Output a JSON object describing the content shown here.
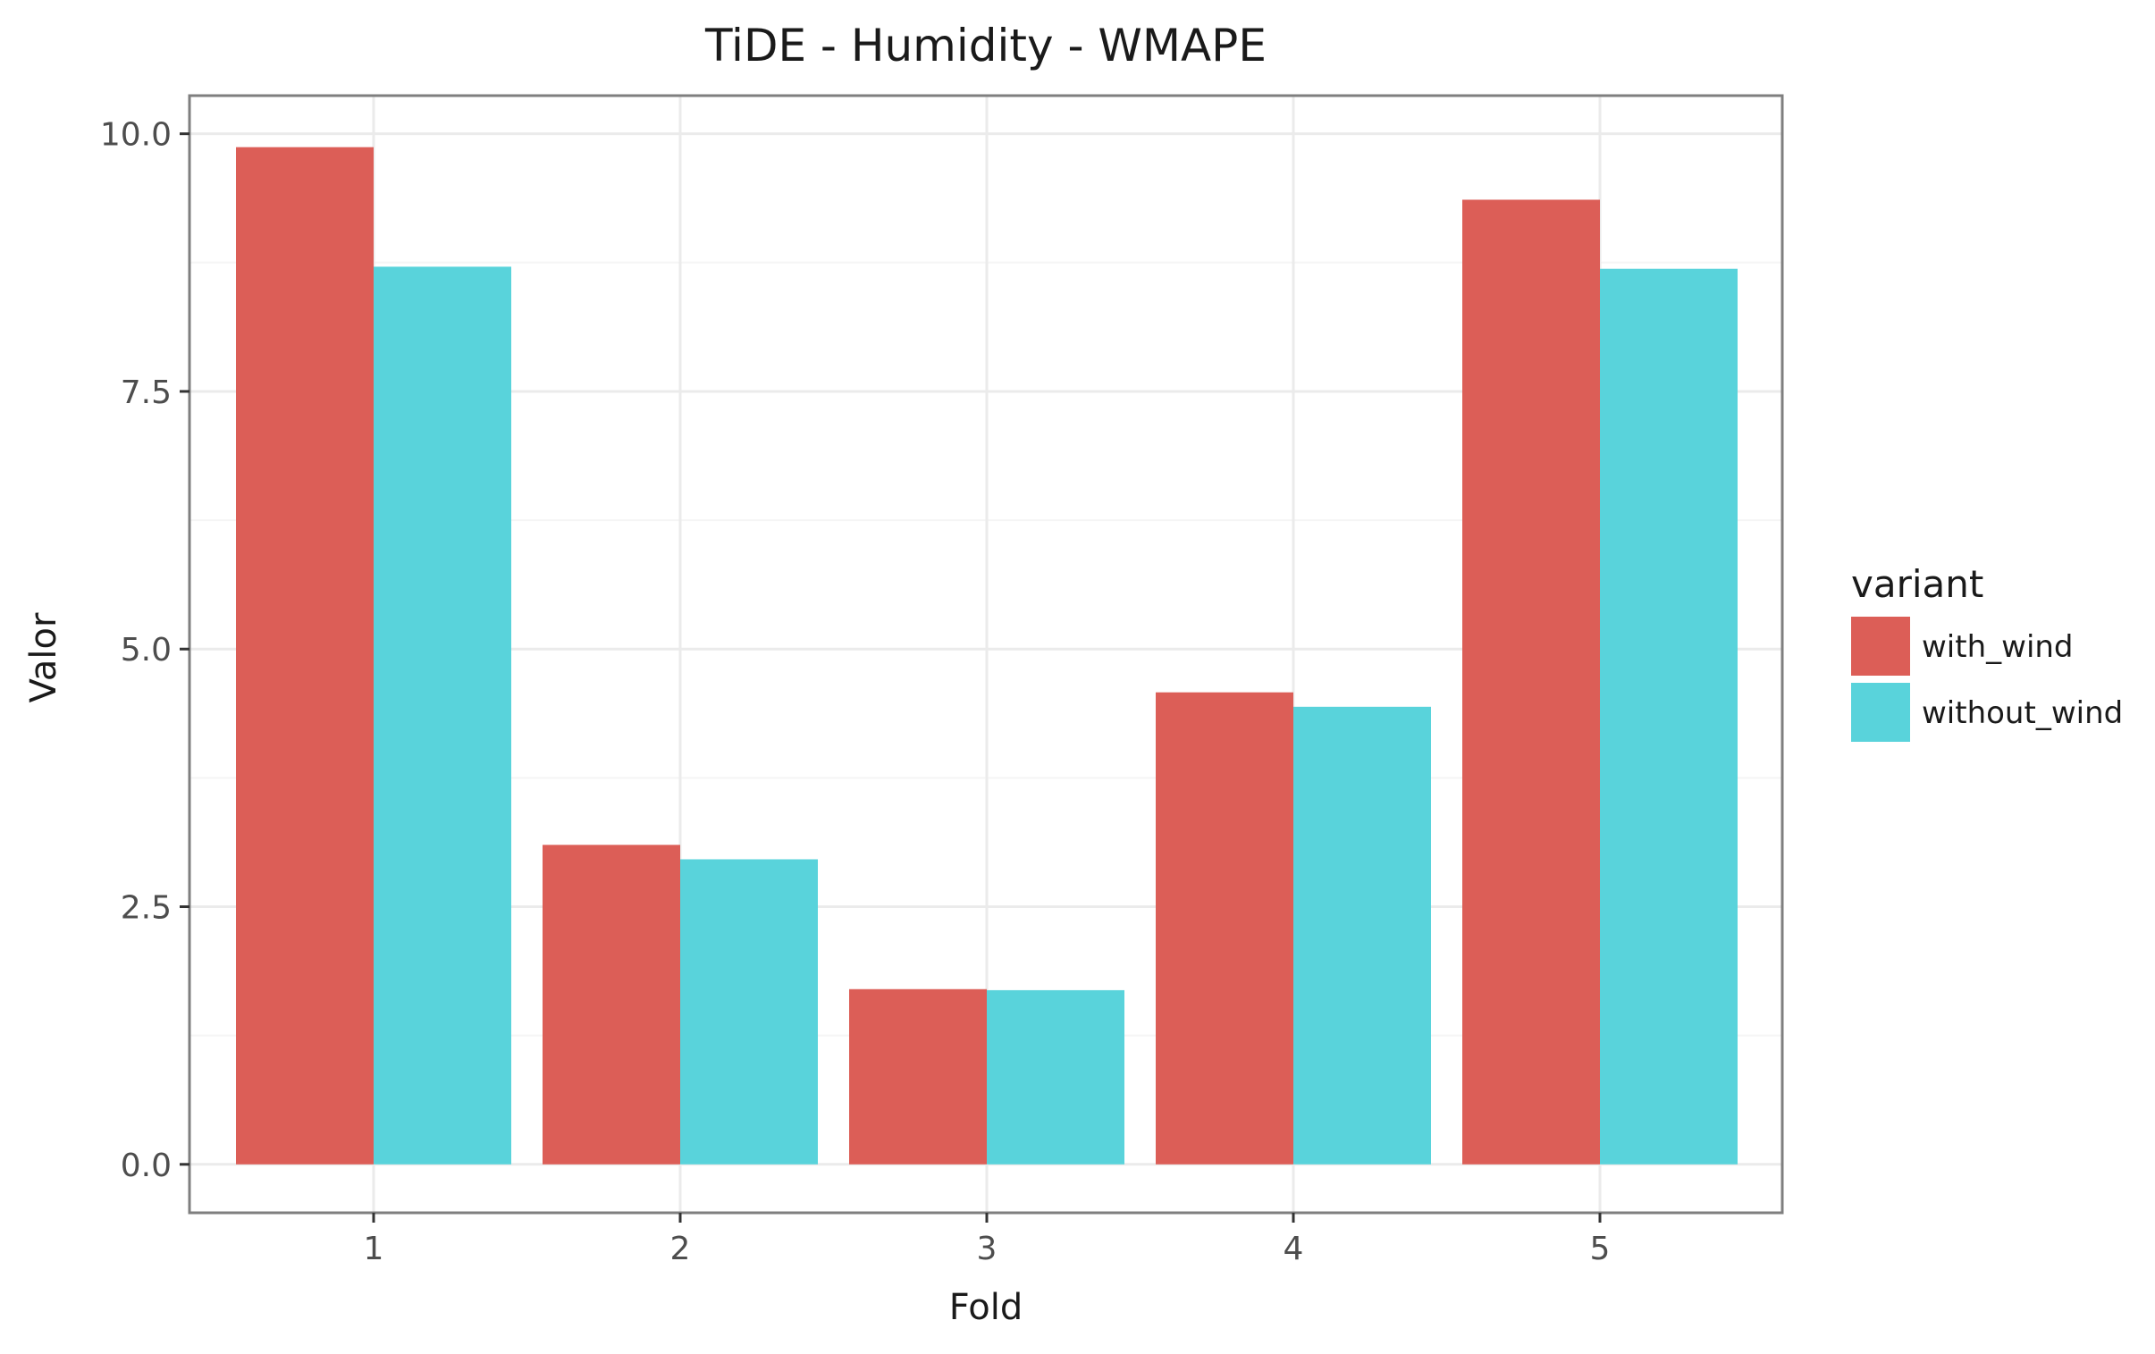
{
  "chart_data": {
    "type": "bar",
    "title": "TiDE - Humidity - WMAPE",
    "xlabel": "Fold",
    "ylabel": "Valor",
    "categories": [
      "1",
      "2",
      "3",
      "4",
      "5"
    ],
    "series": [
      {
        "name": "with_wind",
        "values": [
          9.87,
          3.1,
          1.7,
          4.58,
          9.36
        ],
        "color": "#DC5E57"
      },
      {
        "name": "without_wind",
        "values": [
          8.71,
          2.96,
          1.69,
          4.44,
          8.69
        ],
        "color": "#59D3DB"
      }
    ],
    "ylim": [
      -0.47,
      10.37
    ],
    "yticks": [
      0.0,
      2.5,
      5.0,
      7.5,
      10.0
    ],
    "ytick_labels": [
      "0.0",
      "2.5",
      "5.0",
      "7.5",
      "10.0"
    ],
    "grid": true,
    "legend": {
      "title": "variant",
      "position": "right"
    },
    "colors": {
      "panel_border": "#7F7F7F",
      "grid_major": "#EBEBEB",
      "grid_minor": "#F5F5F5",
      "tick_text": "#4D4D4D",
      "text": "#1A1A1A"
    }
  }
}
